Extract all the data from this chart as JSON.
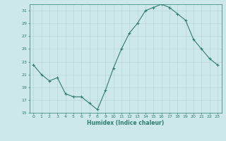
{
  "x": [
    0,
    1,
    2,
    3,
    4,
    5,
    6,
    7,
    8,
    9,
    10,
    11,
    12,
    13,
    14,
    15,
    16,
    17,
    18,
    19,
    20,
    21,
    22,
    23
  ],
  "y": [
    22.5,
    21,
    20,
    20.5,
    18,
    17.5,
    17.5,
    16.5,
    15.5,
    18.5,
    22,
    25,
    27.5,
    29,
    31,
    31.5,
    32,
    31.5,
    30.5,
    29.5,
    26.5,
    25,
    23.5,
    22.5
  ],
  "xlabel": "Humidex (Indice chaleur)",
  "xlim": [
    -0.5,
    23.5
  ],
  "ylim": [
    15,
    32
  ],
  "yticks": [
    15,
    17,
    19,
    21,
    23,
    25,
    27,
    29,
    31
  ],
  "xticks": [
    0,
    1,
    2,
    3,
    4,
    5,
    6,
    7,
    8,
    9,
    10,
    11,
    12,
    13,
    14,
    15,
    16,
    17,
    18,
    19,
    20,
    21,
    22,
    23
  ],
  "line_color": "#2e7d6e",
  "marker": "+",
  "bg_color": "#cde8e8",
  "grid_color": "#b8d4d4",
  "label_color": "#2e7d6e",
  "tick_color": "#2e7d6e"
}
